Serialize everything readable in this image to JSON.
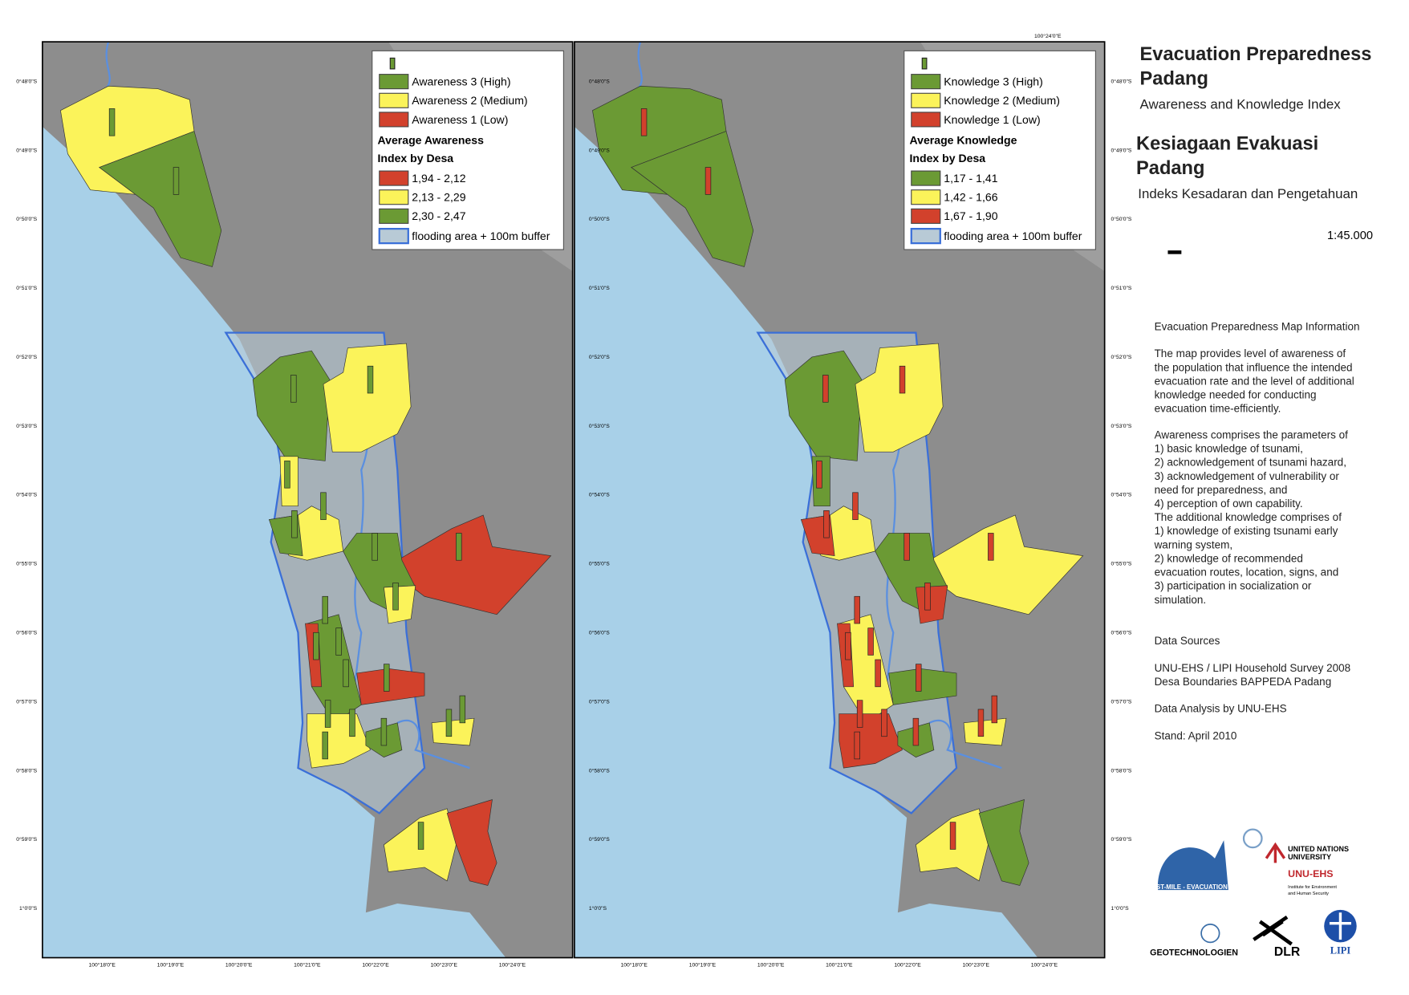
{
  "maps": [
    {
      "legend": {
        "classes": [
          {
            "label": "Awareness 3 (High)",
            "color": "#6b9a34"
          },
          {
            "label": "Awareness 2 (Medium)",
            "color": "#fbf35a"
          },
          {
            "label": "Awareness 1 (Low)",
            "color": "#d2412c"
          }
        ],
        "heading": [
          "Average Awareness",
          "Index by Desa"
        ],
        "ranges": [
          {
            "label": "1,94 - 2,12",
            "color": "#d2412c"
          },
          {
            "label": "2,13 - 2,29",
            "color": "#fbf35a"
          },
          {
            "label": "2,30 - 2,47",
            "color": "#6b9a34"
          }
        ],
        "flood": "flooding area + 100m buffer"
      }
    },
    {
      "legend": {
        "classes": [
          {
            "label": "Knowledge 3 (High)",
            "color": "#6b9a34"
          },
          {
            "label": "Knowledge 2 (Medium)",
            "color": "#fbf35a"
          },
          {
            "label": "Knowledge 1 (Low)",
            "color": "#d2412c"
          }
        ],
        "heading": [
          "Average Knowledge",
          "Index by Desa"
        ],
        "ranges": [
          {
            "label": "1,17 - 1,41",
            "color": "#6b9a34"
          },
          {
            "label": "1,42 - 1,66",
            "color": "#fbf35a"
          },
          {
            "label": "1,67 - 1,90",
            "color": "#d2412c"
          }
        ],
        "flood": "flooding area + 100m buffer"
      }
    }
  ],
  "lat_labels": [
    "0°48'0\"S",
    "0°49'0\"S",
    "0°50'0\"S",
    "0°51'0\"S",
    "0°52'0\"S",
    "0°53'0\"S",
    "0°54'0\"S",
    "0°55'0\"S",
    "0°56'0\"S",
    "0°57'0\"S",
    "0°58'0\"S",
    "0°59'0\"S",
    "1°0'0\"S"
  ],
  "lon_labels": [
    "100°18'0\"E",
    "100°19'0\"E",
    "100°20'0\"E",
    "100°21'0\"E",
    "100°22'0\"E",
    "100°23'0\"E",
    "100°24'0\"E"
  ],
  "top_label": "100°24'0\"E",
  "sidebar": {
    "title_en": [
      "Evacuation Preparedness",
      "Padang"
    ],
    "subtitle_en": "Awareness and Knowledge Index",
    "title_id": [
      "Kesiagaan Evakuasi",
      "Padang"
    ],
    "subtitle_id": "Indeks Kesadaran dan Pengetahuan",
    "scale": "1:45.000",
    "info": [
      [
        "Evacuation Preparedness Map Information"
      ],
      [
        "The map provides level of awareness of",
        "the population that influence the intended",
        "evacuation rate and the level of additional",
        "knowledge needed for conducting",
        "evacuation time-efficiently."
      ],
      [
        "Awareness comprises the parameters of",
        "1) basic knowledge of tsunami,",
        "2) acknowledgement of tsunami hazard,",
        "3) acknowledgement of vulnerability or",
        "need for preparedness, and",
        "4) perception of own capability.",
        "The additional knowledge comprises of",
        "1) knowledge of existing tsunami early",
        "warning system,",
        "2) knowledge of recommended",
        "evacuation routes, location, signs, and",
        "3) participation in socialization or",
        "simulation."
      ],
      [
        "Data Sources"
      ],
      [
        "UNU-EHS / LIPI Household Survey 2008",
        "Desa Boundaries BAPPEDA Padang"
      ],
      [
        "Data Analysis by UNU-EHS"
      ],
      [
        "Stand: April 2010"
      ]
    ],
    "logos": {
      "lastmile": "LAST-MILE - EVACUATION",
      "unu": [
        "UNITED NATIONS",
        "UNIVERSITY"
      ],
      "unuehs": "UNU-EHS",
      "unuehs_sub": [
        "Institute for Environment",
        "and Human Security"
      ],
      "geo": "GEOTECHNOLOGIEN",
      "dlr": "DLR",
      "lipi": "LIPI"
    }
  }
}
